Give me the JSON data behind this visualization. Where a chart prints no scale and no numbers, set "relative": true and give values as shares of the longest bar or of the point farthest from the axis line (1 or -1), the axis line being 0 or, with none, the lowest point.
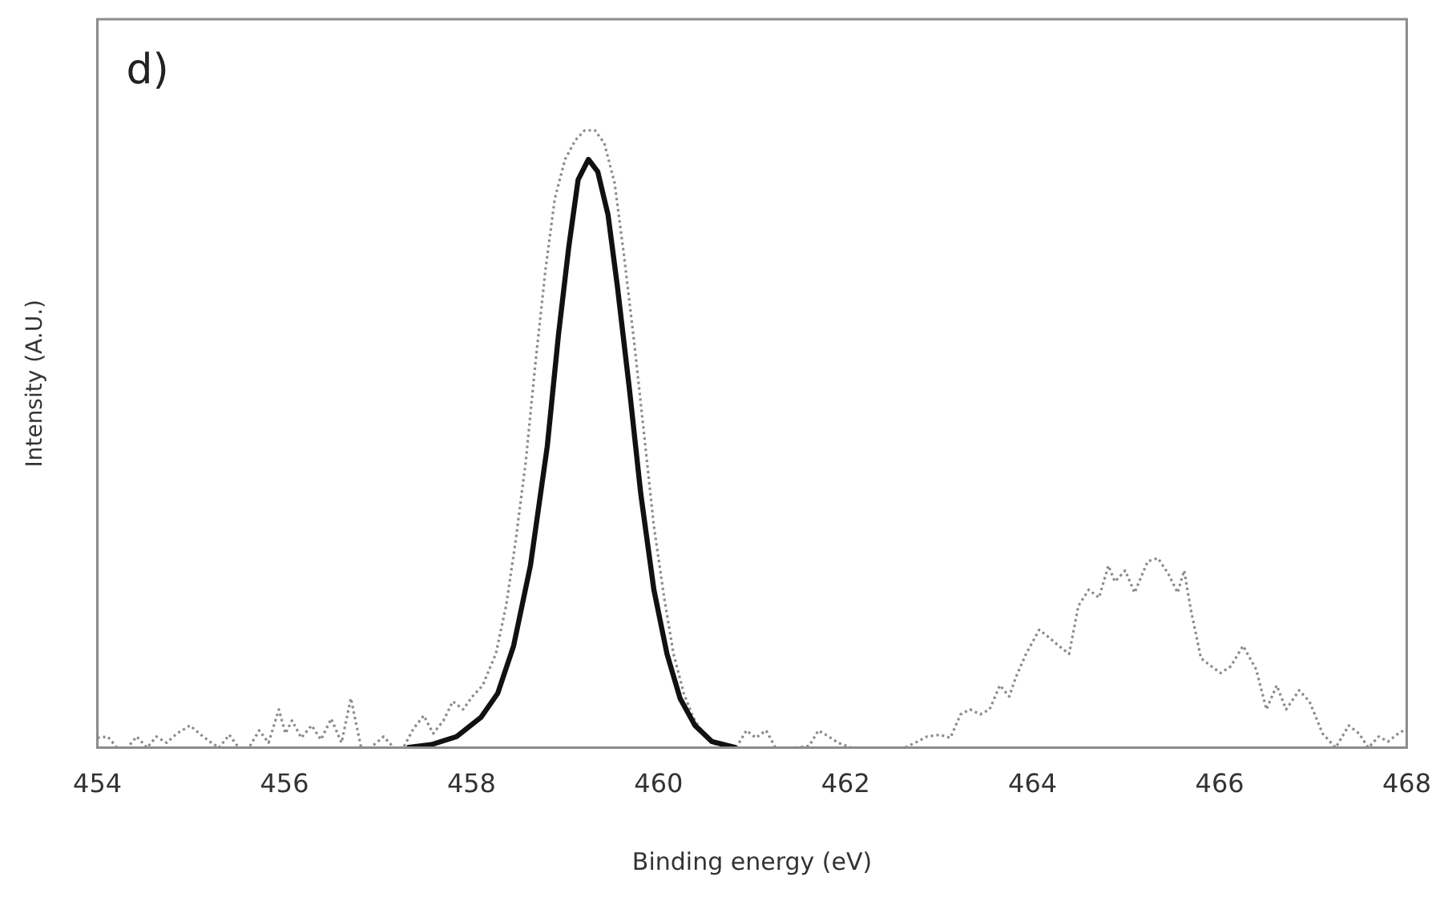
{
  "chart_data": {
    "type": "line",
    "xlabel": "Binding energy (eV)",
    "ylabel": "Intensity (A.U.)",
    "annotations": [
      "d)"
    ],
    "relative": true,
    "xlim": [
      454,
      468
    ],
    "xticks": [
      454,
      456,
      458,
      460,
      462,
      464,
      466,
      468
    ],
    "tick_labels": "x",
    "grid": false,
    "legend": false,
    "marker": "none",
    "series": [
      {
        "color": "#8a8a8a",
        "line_style": "dotted",
        "x": [
          454.0,
          454.11,
          454.21,
          454.32,
          454.42,
          454.53,
          454.63,
          454.74,
          454.85,
          454.99,
          455.09,
          455.2,
          455.3,
          455.41,
          455.51,
          455.62,
          455.73,
          455.83,
          455.94,
          456.01,
          456.08,
          456.18,
          456.29,
          456.39,
          456.5,
          456.61,
          456.71,
          456.82,
          456.92,
          457.06,
          457.17,
          457.27,
          457.38,
          457.49,
          457.59,
          457.7,
          457.8,
          457.91,
          458.01,
          458.12,
          458.19,
          458.26,
          458.37,
          458.47,
          458.58,
          458.68,
          458.79,
          458.89,
          459.0,
          459.11,
          459.21,
          459.32,
          459.42,
          459.53,
          459.63,
          459.74,
          459.85,
          459.95,
          460.06,
          460.16,
          460.27,
          460.37,
          460.48,
          460.58,
          460.69,
          460.83,
          460.94,
          461.04,
          461.15,
          461.25,
          461.36,
          461.46,
          461.61,
          461.71,
          461.82,
          461.92,
          462.06,
          462.17,
          462.27,
          462.42,
          462.52,
          462.63,
          462.77,
          462.87,
          463.01,
          463.12,
          463.23,
          463.33,
          463.44,
          463.54,
          463.65,
          463.75,
          463.82,
          463.93,
          464.07,
          464.18,
          464.28,
          464.39,
          464.49,
          464.6,
          464.71,
          464.81,
          464.88,
          464.99,
          465.09,
          465.23,
          465.34,
          465.45,
          465.55,
          465.62,
          465.69,
          465.8,
          465.91,
          466.01,
          466.12,
          466.25,
          466.39,
          466.5,
          466.61,
          466.71,
          466.85,
          466.96,
          467.1,
          467.24,
          467.38,
          467.49,
          467.59,
          467.7,
          467.8,
          467.91,
          468.0
        ],
        "values": [
          0.016,
          0.018,
          0,
          0,
          0.018,
          0,
          0.018,
          0.008,
          0.023,
          0.036,
          0.023,
          0.01,
          0,
          0.021,
          0,
          0,
          0.028,
          0.008,
          0.062,
          0.023,
          0.044,
          0.016,
          0.036,
          0.013,
          0.047,
          0.008,
          0.08,
          0,
          0,
          0.018,
          0,
          0,
          0.031,
          0.052,
          0.023,
          0.044,
          0.075,
          0.062,
          0.083,
          0.101,
          0.127,
          0.152,
          0.23,
          0.333,
          0.463,
          0.618,
          0.773,
          0.889,
          0.953,
          0.984,
          1.0,
          1.0,
          0.979,
          0.915,
          0.798,
          0.656,
          0.501,
          0.359,
          0.243,
          0.152,
          0.088,
          0.049,
          0.023,
          0.008,
          0,
          0,
          0.028,
          0.016,
          0.028,
          0,
          0,
          0,
          0.003,
          0.028,
          0.018,
          0.008,
          0,
          0,
          0,
          0,
          0,
          0,
          0.01,
          0.018,
          0.021,
          0.016,
          0.054,
          0.062,
          0.054,
          0.062,
          0.101,
          0.083,
          0.114,
          0.152,
          0.191,
          0.178,
          0.165,
          0.152,
          0.23,
          0.256,
          0.243,
          0.295,
          0.269,
          0.287,
          0.251,
          0.302,
          0.307,
          0.282,
          0.251,
          0.287,
          0.225,
          0.145,
          0.132,
          0.121,
          0.132,
          0.165,
          0.127,
          0.062,
          0.101,
          0.062,
          0.093,
          0.075,
          0.023,
          0,
          0.036,
          0.023,
          0,
          0.018,
          0.01,
          0.023,
          0.031
        ]
      },
      {
        "color": "#111111",
        "line_style": "solid",
        "x": [
          457.31,
          457.57,
          457.84,
          458.1,
          458.28,
          458.45,
          458.63,
          458.81,
          458.93,
          459.04,
          459.14,
          459.25,
          459.35,
          459.46,
          459.56,
          459.69,
          459.81,
          459.95,
          460.09,
          460.23,
          460.39,
          460.57,
          460.83
        ],
        "values": [
          0,
          0.005,
          0.018,
          0.049,
          0.088,
          0.165,
          0.295,
          0.488,
          0.669,
          0.811,
          0.92,
          0.953,
          0.933,
          0.863,
          0.747,
          0.579,
          0.411,
          0.256,
          0.152,
          0.08,
          0.036,
          0.01,
          0
        ]
      }
    ]
  }
}
